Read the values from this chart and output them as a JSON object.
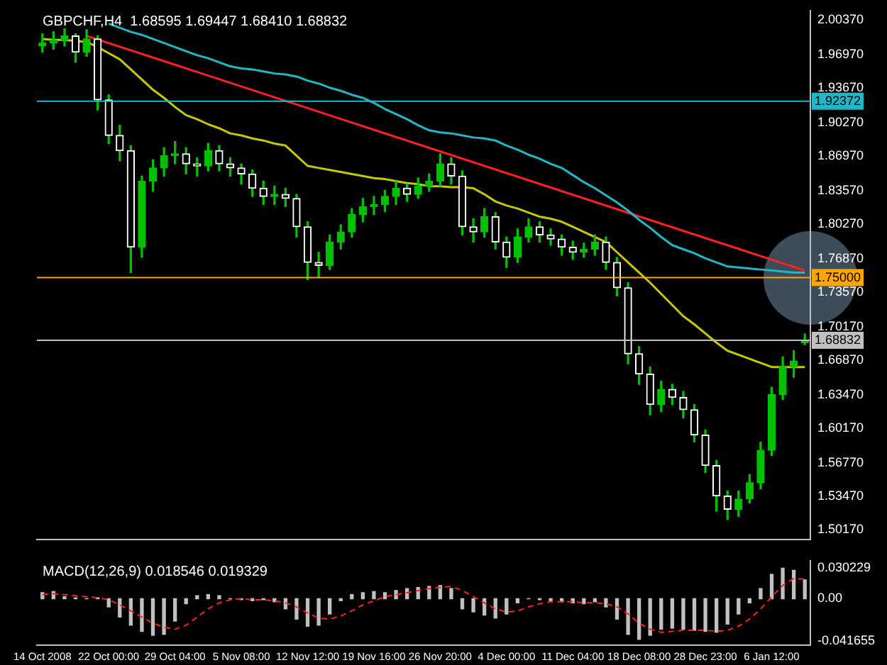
{
  "chart_data": [
    {
      "type": "candlestick",
      "title": "GBPCHF,H4  1.68595 1.69447 1.68410 1.68832",
      "color": "#00c000",
      "marker": "none",
      "tick_labels": "y",
      "colors": [
        "#00c000",
        "#00c000",
        "#00c000",
        "#ffffff",
        "#00c000",
        "#ffffff",
        "#ffffff",
        "#ffffff",
        "#ffffff",
        "#00c000",
        "#00c000",
        "#00c000",
        "#00c000",
        "#ffffff",
        "#ffffff",
        "#00c000",
        "#ffffff",
        "#ffffff",
        "#ffffff",
        "#ffffff",
        "#ffffff",
        "#00c000",
        "#ffffff",
        "#ffffff",
        "#ffffff",
        "#ffffff",
        "#00c000",
        "#00c000",
        "#00c000",
        "#00c000",
        "#00c000",
        "#00c000",
        "#00c000",
        "#ffffff",
        "#00c000",
        "#00c000",
        "#00c000",
        "#ffffff",
        "#ffffff",
        "#ffffff",
        "#00c000",
        "#ffffff",
        "#ffffff",
        "#00c000",
        "#00c000",
        "#ffffff",
        "#ffffff",
        "#ffffff",
        "#ffffff",
        "#00c000",
        "#00c000",
        "#ffffff",
        "#ffffff",
        "#ffffff",
        "#ffffff",
        "#ffffff",
        "#00c000",
        "#ffffff",
        "#ffffff",
        "#ffffff",
        "#ffffff",
        "#ffffff",
        "#ffffff",
        "#00c000",
        "#00c000",
        "#00c000",
        "#00c000",
        "#00c000",
        "#00c000",
        "#00c000"
      ],
      "categories": [
        null,
        null,
        null,
        null,
        null,
        null,
        null,
        null,
        null,
        null,
        null,
        null,
        null,
        null,
        null,
        null,
        null,
        null,
        null,
        null,
        null,
        null,
        null,
        null,
        null,
        null,
        null,
        null,
        null,
        null,
        null,
        null,
        null,
        null,
        null,
        null,
        null,
        null,
        null,
        null,
        null,
        null,
        null,
        null,
        null,
        null,
        null,
        null,
        null,
        null,
        null,
        null,
        null,
        null,
        null,
        null,
        null,
        null,
        null,
        null,
        null,
        null,
        null,
        null,
        null,
        null,
        null,
        null,
        null,
        null
      ],
      "ohlc": [
        [
          1.978,
          1.99,
          1.972,
          1.981
        ],
        [
          1.981,
          1.992,
          1.975,
          1.984
        ],
        [
          1.984,
          1.995,
          1.978,
          1.988
        ],
        [
          1.988,
          1.99,
          1.962,
          1.972
        ],
        [
          1.972,
          1.994,
          1.968,
          1.985
        ],
        [
          1.985,
          1.988,
          1.915,
          1.925
        ],
        [
          1.925,
          1.93,
          1.882,
          1.89
        ],
        [
          1.89,
          1.9,
          1.865,
          1.875
        ],
        [
          1.875,
          1.88,
          1.755,
          1.78
        ],
        [
          1.78,
          1.85,
          1.77,
          1.845
        ],
        [
          1.845,
          1.866,
          1.835,
          1.858
        ],
        [
          1.858,
          1.878,
          1.85,
          1.87
        ],
        [
          1.87,
          1.884,
          1.862,
          1.872
        ],
        [
          1.872,
          1.878,
          1.852,
          1.862
        ],
        [
          1.862,
          1.868,
          1.85,
          1.86
        ],
        [
          1.86,
          1.882,
          1.855,
          1.875
        ],
        [
          1.875,
          1.88,
          1.855,
          1.862
        ],
        [
          1.862,
          1.868,
          1.85,
          1.858
        ],
        [
          1.858,
          1.862,
          1.842,
          1.852
        ],
        [
          1.852,
          1.856,
          1.83,
          1.838
        ],
        [
          1.838,
          1.845,
          1.822,
          1.83
        ],
        [
          1.83,
          1.84,
          1.822,
          1.832
        ],
        [
          1.832,
          1.838,
          1.82,
          1.828
        ],
        [
          1.828,
          1.832,
          1.79,
          1.8
        ],
        [
          1.8,
          1.805,
          1.748,
          1.765
        ],
        [
          1.765,
          1.775,
          1.75,
          1.762
        ],
        [
          1.762,
          1.792,
          1.758,
          1.785
        ],
        [
          1.785,
          1.802,
          1.778,
          1.795
        ],
        [
          1.795,
          1.818,
          1.79,
          1.812
        ],
        [
          1.812,
          1.828,
          1.805,
          1.82
        ],
        [
          1.82,
          1.83,
          1.812,
          1.822
        ],
        [
          1.822,
          1.836,
          1.815,
          1.83
        ],
        [
          1.83,
          1.845,
          1.822,
          1.838
        ],
        [
          1.838,
          1.842,
          1.825,
          1.832
        ],
        [
          1.832,
          1.848,
          1.828,
          1.84
        ],
        [
          1.84,
          1.852,
          1.835,
          1.845
        ],
        [
          1.845,
          1.872,
          1.84,
          1.862
        ],
        [
          1.862,
          1.868,
          1.842,
          1.85
        ],
        [
          1.85,
          1.855,
          1.792,
          1.8
        ],
        [
          1.8,
          1.808,
          1.785,
          1.795
        ],
        [
          1.795,
          1.818,
          1.79,
          1.81
        ],
        [
          1.81,
          1.814,
          1.778,
          1.785
        ],
        [
          1.785,
          1.79,
          1.76,
          1.77
        ],
        [
          1.77,
          1.798,
          1.765,
          1.79
        ],
        [
          1.79,
          1.808,
          1.785,
          1.8
        ],
        [
          1.8,
          1.805,
          1.785,
          1.792
        ],
        [
          1.792,
          1.798,
          1.782,
          1.788
        ],
        [
          1.788,
          1.792,
          1.772,
          1.78
        ],
        [
          1.78,
          1.786,
          1.768,
          1.775
        ],
        [
          1.775,
          1.784,
          1.77,
          1.778
        ],
        [
          1.778,
          1.792,
          1.772,
          1.785
        ],
        [
          1.785,
          1.79,
          1.758,
          1.765
        ],
        [
          1.765,
          1.77,
          1.732,
          1.74
        ],
        [
          1.74,
          1.745,
          1.665,
          1.675
        ],
        [
          1.675,
          1.682,
          1.645,
          1.655
        ],
        [
          1.655,
          1.662,
          1.615,
          1.625
        ],
        [
          1.625,
          1.648,
          1.618,
          1.64
        ],
        [
          1.64,
          1.645,
          1.625,
          1.632
        ],
        [
          1.632,
          1.638,
          1.612,
          1.62
        ],
        [
          1.62,
          1.625,
          1.588,
          1.595
        ],
        [
          1.595,
          1.6,
          1.558,
          1.565
        ],
        [
          1.565,
          1.57,
          1.52,
          1.535
        ],
        [
          1.535,
          1.54,
          1.512,
          1.522
        ],
        [
          1.522,
          1.54,
          1.515,
          1.532
        ],
        [
          1.532,
          1.556,
          1.528,
          1.548
        ],
        [
          1.548,
          1.588,
          1.542,
          1.58
        ],
        [
          1.58,
          1.642,
          1.575,
          1.635
        ],
        [
          1.635,
          1.672,
          1.63,
          1.662
        ],
        [
          1.662,
          1.678,
          1.652,
          1.668
        ],
        [
          1.68595,
          1.69447,
          1.6841,
          1.68832
        ]
      ],
      "series": [
        {
          "type": "line",
          "color": "#c8c800",
          "values": [
            1.985,
            1.984,
            1.984,
            1.983,
            1.982,
            1.977,
            1.971,
            1.965,
            1.955,
            1.945,
            1.935,
            1.927,
            1.918,
            1.91,
            1.906,
            1.901,
            1.897,
            1.892,
            1.89,
            1.887,
            1.885,
            1.882,
            1.88,
            1.87,
            1.86,
            1.858,
            1.856,
            1.854,
            1.852,
            1.85,
            1.848,
            1.847,
            1.845,
            1.843,
            1.842,
            1.84,
            1.84,
            1.839,
            1.839,
            1.838,
            1.832,
            1.825,
            1.821,
            1.818,
            1.814,
            1.81,
            1.808,
            1.805,
            1.8,
            1.795,
            1.79,
            1.785,
            1.775,
            1.765,
            1.755,
            1.745,
            1.734,
            1.723,
            1.712,
            1.704,
            1.695,
            1.686,
            1.678,
            1.674,
            1.67,
            1.666,
            1.662,
            1.662,
            1.662,
            1.662
          ]
        },
        {
          "type": "line",
          "color": "#20b8c8",
          "values": [
            null,
            null,
            null,
            null,
            null,
            null,
            2.0,
            1.996,
            1.992,
            1.989,
            1.985,
            1.981,
            1.977,
            1.973,
            1.969,
            1.966,
            1.962,
            1.958,
            1.956,
            1.955,
            1.953,
            1.951,
            1.95,
            1.948,
            1.944,
            1.941,
            1.937,
            1.934,
            1.93,
            1.927,
            1.922,
            1.916,
            1.911,
            1.906,
            1.9,
            1.895,
            1.893,
            1.892,
            1.89,
            1.888,
            1.887,
            1.885,
            1.88,
            1.876,
            1.871,
            1.867,
            1.862,
            1.858,
            1.851,
            1.844,
            1.838,
            1.831,
            1.824,
            1.816,
            1.807,
            1.799,
            1.79,
            1.782,
            1.778,
            1.774,
            1.769,
            1.765,
            1.761,
            1.76,
            1.759,
            1.758,
            1.757,
            1.756,
            1.755,
            1.755
          ]
        },
        {
          "type": "line",
          "color": "#ff2020",
          "values": [
            null,
            null,
            null,
            null,
            1.988,
            null,
            null,
            null,
            null,
            null,
            null,
            null,
            null,
            null,
            null,
            null,
            null,
            null,
            null,
            null,
            null,
            null,
            null,
            null,
            null,
            null,
            null,
            null,
            null,
            null,
            null,
            null,
            null,
            null,
            null,
            null,
            null,
            null,
            null,
            null,
            null,
            null,
            null,
            null,
            null,
            null,
            null,
            null,
            null,
            null,
            null,
            null,
            null,
            null,
            null,
            null,
            null,
            null,
            null,
            null,
            null,
            null,
            null,
            null,
            null,
            null,
            null,
            null,
            null,
            1.757
          ]
        }
      ],
      "ylim": [
        1.492,
        2.013
      ],
      "yticks": [
        {
          "value": 2.0037,
          "label": "2.00370"
        },
        {
          "value": 1.9697,
          "label": "1.96970"
        },
        {
          "value": 1.9367,
          "label": "1.93670"
        },
        {
          "value": 1.9027,
          "label": "1.90270"
        },
        {
          "value": 1.8697,
          "label": "1.86970"
        },
        {
          "value": 1.8357,
          "label": "1.83570"
        },
        {
          "value": 1.8027,
          "label": "1.80270"
        },
        {
          "value": 1.7687,
          "label": "1.76870"
        },
        {
          "value": 1.7357,
          "label": "1.73570"
        },
        {
          "value": 1.7017,
          "label": "1.70170"
        },
        {
          "value": 1.6687,
          "label": "1.66870"
        },
        {
          "value": 1.6347,
          "label": "1.63470"
        },
        {
          "value": 1.6017,
          "label": "1.60170"
        },
        {
          "value": 1.5677,
          "label": "1.56770"
        },
        {
          "value": 1.5347,
          "label": "1.53470"
        },
        {
          "value": 1.5017,
          "label": "1.50170"
        }
      ],
      "ref_lines": [
        {
          "axis": "y",
          "value": 1.92372,
          "label": "1.92372",
          "color": "#20b8c8"
        },
        {
          "axis": "y",
          "value": 1.75,
          "label": "1.75000",
          "color": "#ffa500"
        },
        {
          "axis": "y",
          "value": 1.68832,
          "label": "1.68832",
          "color": "#c0c0c0"
        }
      ]
    },
    {
      "type": "bar",
      "title": "MACD(12,26,9) 0.018546 0.019329",
      "marker": "none",
      "categories": [
        "14 Oct 2008",
        null,
        null,
        null,
        null,
        null,
        "22 Oct 00:00",
        null,
        null,
        null,
        null,
        null,
        "29 Oct 04:00",
        null,
        null,
        null,
        null,
        null,
        "5 Nov 08:00",
        null,
        null,
        null,
        null,
        null,
        "12 Nov 12:00",
        null,
        null,
        null,
        null,
        null,
        "19 Nov 16:00",
        null,
        null,
        null,
        null,
        null,
        "26 Nov 20:00",
        null,
        null,
        null,
        null,
        null,
        "4 Dec 00:00",
        null,
        null,
        null,
        null,
        null,
        "11 Dec 04:00",
        null,
        null,
        null,
        null,
        null,
        "18 Dec 08:00",
        null,
        null,
        null,
        null,
        null,
        "28 Dec 23:00",
        null,
        null,
        null,
        null,
        null,
        "6 Jan 12:00",
        null,
        null,
        null
      ],
      "series": [
        {
          "type": "bar",
          "color": "#c0c0c0",
          "values": [
            0.006,
            0.007,
            0.002,
            0.001,
            0.0,
            0.001,
            -0.008,
            -0.018,
            -0.026,
            -0.032,
            -0.036,
            -0.035,
            -0.022,
            -0.005,
            0.003,
            0.004,
            0.003,
            0.0,
            -0.001,
            -0.002,
            -0.001,
            -0.003,
            -0.01,
            -0.02,
            -0.027,
            -0.026,
            -0.015,
            -0.002,
            0.004,
            0.006,
            0.007,
            0.006,
            0.008,
            0.01,
            0.011,
            0.012,
            0.013,
            0.01,
            -0.01,
            -0.013,
            -0.016,
            -0.019,
            -0.015,
            -0.004,
            0.0,
            -0.001,
            -0.002,
            -0.003,
            -0.004,
            -0.005,
            -0.003,
            -0.008,
            -0.02,
            -0.035,
            -0.04,
            -0.036,
            -0.03,
            -0.029,
            -0.03,
            -0.031,
            -0.032,
            -0.033,
            -0.025,
            -0.015,
            -0.004,
            0.01,
            0.024,
            0.03,
            0.028,
            0.018546
          ]
        },
        {
          "type": "line",
          "color": "#ff2020",
          "line_style": "dashed",
          "values": [
            0.004,
            0.005,
            0.004,
            0.003,
            0.002,
            0.001,
            -0.001,
            -0.006,
            -0.012,
            -0.018,
            -0.024,
            -0.028,
            -0.03,
            -0.026,
            -0.018,
            -0.01,
            -0.004,
            -0.001,
            0.0,
            -0.001,
            -0.001,
            -0.002,
            -0.004,
            -0.008,
            -0.014,
            -0.019,
            -0.02,
            -0.017,
            -0.012,
            -0.006,
            -0.002,
            0.002,
            0.004,
            0.006,
            0.008,
            0.01,
            0.011,
            0.012,
            0.008,
            0.002,
            -0.004,
            -0.01,
            -0.013,
            -0.012,
            -0.008,
            -0.005,
            -0.003,
            -0.003,
            -0.003,
            -0.004,
            -0.004,
            -0.005,
            -0.008,
            -0.015,
            -0.024,
            -0.03,
            -0.033,
            -0.032,
            -0.031,
            -0.031,
            -0.031,
            -0.032,
            -0.031,
            -0.027,
            -0.02,
            -0.01,
            0.002,
            0.013,
            0.02,
            0.019329
          ]
        }
      ],
      "ylim": [
        -0.0456,
        0.0374
      ],
      "yticks": [
        {
          "value": 0.030229,
          "label": "0.030229"
        },
        {
          "value": 0,
          "label": "0.00"
        },
        {
          "value": -0.041655,
          "label": "-0.041655"
        }
      ]
    }
  ]
}
